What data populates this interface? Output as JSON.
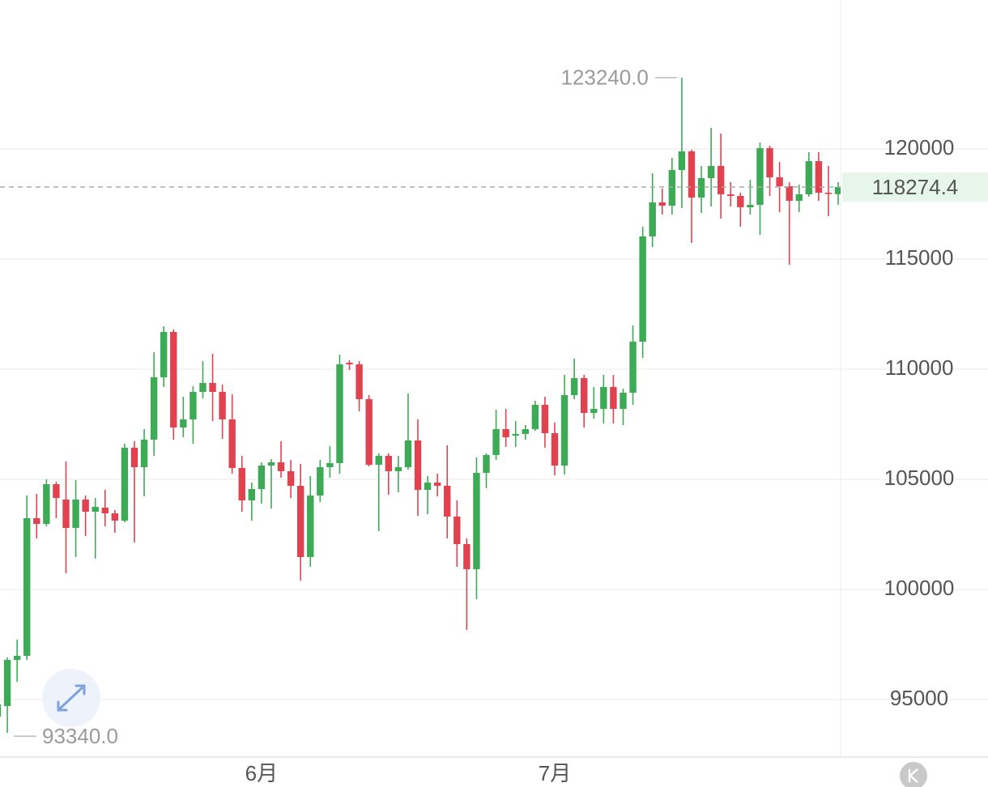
{
  "chart_data": {
    "type": "candlestick",
    "categories": [
      null,
      null,
      null,
      null,
      null,
      null,
      null,
      null,
      null,
      null,
      null,
      null,
      null,
      null,
      null,
      null,
      null,
      null,
      null,
      null,
      null,
      null,
      null,
      null,
      null,
      null,
      null,
      "6月",
      null,
      null,
      null,
      null,
      null,
      null,
      null,
      null,
      null,
      null,
      null,
      null,
      null,
      null,
      null,
      null,
      null,
      null,
      null,
      null,
      null,
      null,
      null,
      null,
      null,
      null,
      null,
      null,
      null,
      "7月",
      null,
      null,
      null,
      null,
      null,
      null,
      null,
      null,
      null,
      null,
      null,
      null,
      null,
      null,
      null,
      null,
      null,
      null,
      null,
      null,
      null,
      null,
      null,
      null,
      null,
      null,
      null,
      null,
      null
    ],
    "open": [
      94231,
      94709,
      96805,
      96988,
      103238,
      102980,
      104782,
      104083,
      102797,
      104083,
      103532,
      103715,
      103458,
      103127,
      106436,
      105553,
      106803,
      109634,
      111692,
      107355,
      107722,
      108972,
      109377,
      108972,
      107722,
      105517,
      104046,
      104561,
      105627,
      105774,
      105370,
      104708,
      101473,
      104267,
      105553,
      105737,
      110296,
      110222,
      108641,
      105663,
      106068,
      105370,
      105553,
      106767,
      104524,
      104855,
      104708,
      103311,
      102061,
      100922,
      105296,
      106105,
      107281,
      106987,
      107061,
      107281,
      108384,
      107097,
      105627,
      108825,
      109597,
      108016,
      108200,
      109193,
      108200,
      108935,
      111251,
      116030,
      117574,
      117427,
      119044,
      119890,
      117795,
      118677,
      119228,
      117942,
      117868,
      117353,
      117464,
      120037,
      118714,
      118309,
      117648,
      117942,
      119448,
      118015,
      117950
    ],
    "high": [
      95150,
      96915,
      97724,
      104267,
      104340,
      105002,
      104892,
      105811,
      104965,
      104267,
      104157,
      104524,
      103605,
      106620,
      106730,
      107281,
      110773,
      111950,
      111803,
      108752,
      109229,
      110369,
      110700,
      109303,
      108862,
      106068,
      104855,
      105774,
      105921,
      106730,
      105884,
      105701,
      105149,
      105884,
      106509,
      110663,
      110406,
      110369,
      108825,
      106178,
      106178,
      106068,
      108899,
      107722,
      105149,
      105259,
      106546,
      104046,
      102319,
      105995,
      106178,
      108163,
      108200,
      107649,
      107465,
      108568,
      108752,
      107575,
      109744,
      110479,
      109744,
      109193,
      109744,
      109744,
      109119,
      111986,
      116471,
      118897,
      118199,
      119596,
      123240,
      119963,
      119228,
      120956,
      120699,
      118493,
      118015,
      118603,
      120294,
      120147,
      119412,
      118493,
      118383,
      119853,
      119853,
      119228,
      118493
    ],
    "low": [
      93340,
      93496,
      95812,
      96805,
      102319,
      102870,
      103238,
      100738,
      101473,
      102429,
      101400,
      102870,
      102575,
      103054,
      102135,
      104230,
      106068,
      109193,
      106803,
      106914,
      106620,
      108678,
      107649,
      106840,
      105259,
      103532,
      103127,
      103899,
      103679,
      105076,
      104157,
      100407,
      101032,
      103973,
      105076,
      105259,
      109965,
      108090,
      105590,
      102649,
      104304,
      104414,
      105443,
      103348,
      103421,
      104230,
      102319,
      101032,
      98165,
      99562,
      104598,
      105884,
      106473,
      106473,
      106803,
      107208,
      106436,
      105186,
      105223,
      108641,
      107355,
      107759,
      107538,
      107538,
      107465,
      108384,
      110516,
      115552,
      117023,
      117023,
      117316,
      115736,
      117096,
      117390,
      116839,
      117390,
      116471,
      117023,
      116104,
      117868,
      117133,
      114743,
      117133,
      117831,
      117648,
      116949,
      117464
    ],
    "close": [
      94783,
      96805,
      96988,
      103238,
      102980,
      104782,
      104157,
      102797,
      104083,
      103532,
      103752,
      103458,
      103127,
      106436,
      105553,
      106803,
      109634,
      111692,
      107355,
      107722,
      108972,
      109377,
      108972,
      107722,
      105517,
      104046,
      104561,
      105627,
      105774,
      105370,
      104708,
      101473,
      104267,
      105553,
      105737,
      110222,
      110222,
      108641,
      105663,
      106068,
      105370,
      105553,
      106767,
      104524,
      104855,
      104708,
      103311,
      102061,
      100922,
      105296,
      106105,
      107281,
      106914,
      107061,
      107281,
      108384,
      107097,
      105627,
      108825,
      109597,
      108016,
      108200,
      109193,
      108200,
      108935,
      111251,
      116030,
      117574,
      117427,
      119044,
      119890,
      117795,
      118677,
      119228,
      117942,
      117868,
      117353,
      117464,
      120037,
      118714,
      118309,
      117648,
      117942,
      119448,
      118015,
      118000,
      118274.4
    ],
    "up_color": "#3dab55",
    "down_color": "#e0434f",
    "high_label": "123240.0",
    "low_label": "93340.0",
    "ylim": [
      92393,
      126764
    ],
    "yticks": [
      95000,
      100000,
      105000,
      110000,
      115000,
      120000
    ],
    "grid": true,
    "last_price_line": true
  }
}
